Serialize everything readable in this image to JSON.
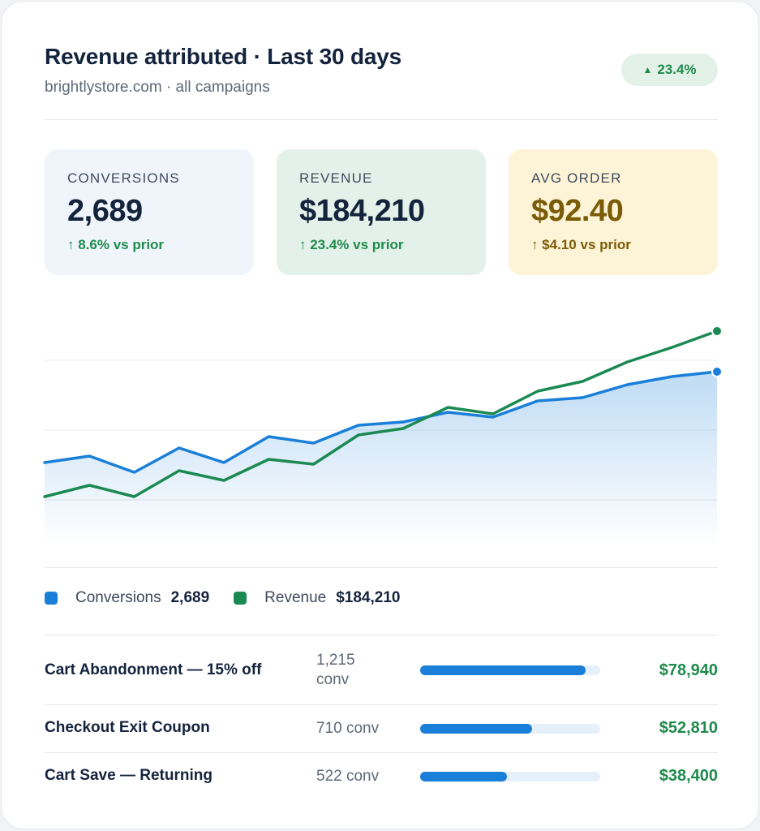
{
  "header": {
    "title": "Revenue attributed · Last 30 days",
    "subtitle": "brightlystore.com · all campaigns",
    "badge": "23.4%",
    "badge_icon": "triangle-up-icon"
  },
  "kpis": [
    {
      "label": "CONVERSIONS",
      "value": "2,689",
      "delta": "↑ 8.6% vs prior"
    },
    {
      "label": "REVENUE",
      "value": "$184,210",
      "delta": "↑ 23.4% vs prior"
    },
    {
      "label": "AVG ORDER",
      "value": "$92.40",
      "delta": "↑ $4.10 vs prior"
    }
  ],
  "colors": {
    "conversions": "#1a7fd8",
    "revenue": "#1b8a52",
    "positive": "#1f8a4c",
    "gold": "#7a5b07"
  },
  "chart_data": {
    "type": "line",
    "x": [
      1,
      2,
      3,
      4,
      5,
      6,
      7,
      8,
      9,
      10,
      11,
      12,
      13,
      14,
      15,
      16
    ],
    "y_range": [
      0,
      100
    ],
    "grid": true,
    "series": [
      {
        "name": "Conversions",
        "values": [
          21,
          25,
          15,
          30,
          21,
          37,
          33,
          44,
          46,
          52,
          49,
          59,
          61,
          69,
          74,
          77
        ],
        "area": true
      },
      {
        "name": "Revenue",
        "values": [
          0,
          7,
          0,
          16,
          10,
          23,
          20,
          38,
          42,
          55,
          51,
          65,
          71,
          83,
          92,
          102
        ]
      }
    ]
  },
  "legend": [
    {
      "name": "Conversions",
      "value": "2,689"
    },
    {
      "name": "Revenue",
      "value": "$184,210"
    }
  ],
  "campaigns": [
    {
      "name": "Cart Abandonment — 15% off",
      "conv_line1": "1,215",
      "conv_line2": "conv",
      "share": 0.92,
      "revenue": "$78,940"
    },
    {
      "name": "Checkout Exit Coupon",
      "conv_line1": "710 conv",
      "conv_line2": "",
      "share": 0.62,
      "revenue": "$52,810"
    },
    {
      "name": "Cart Save — Returning",
      "conv_line1": "522 conv",
      "conv_line2": "",
      "share": 0.48,
      "revenue": "$38,400"
    }
  ]
}
